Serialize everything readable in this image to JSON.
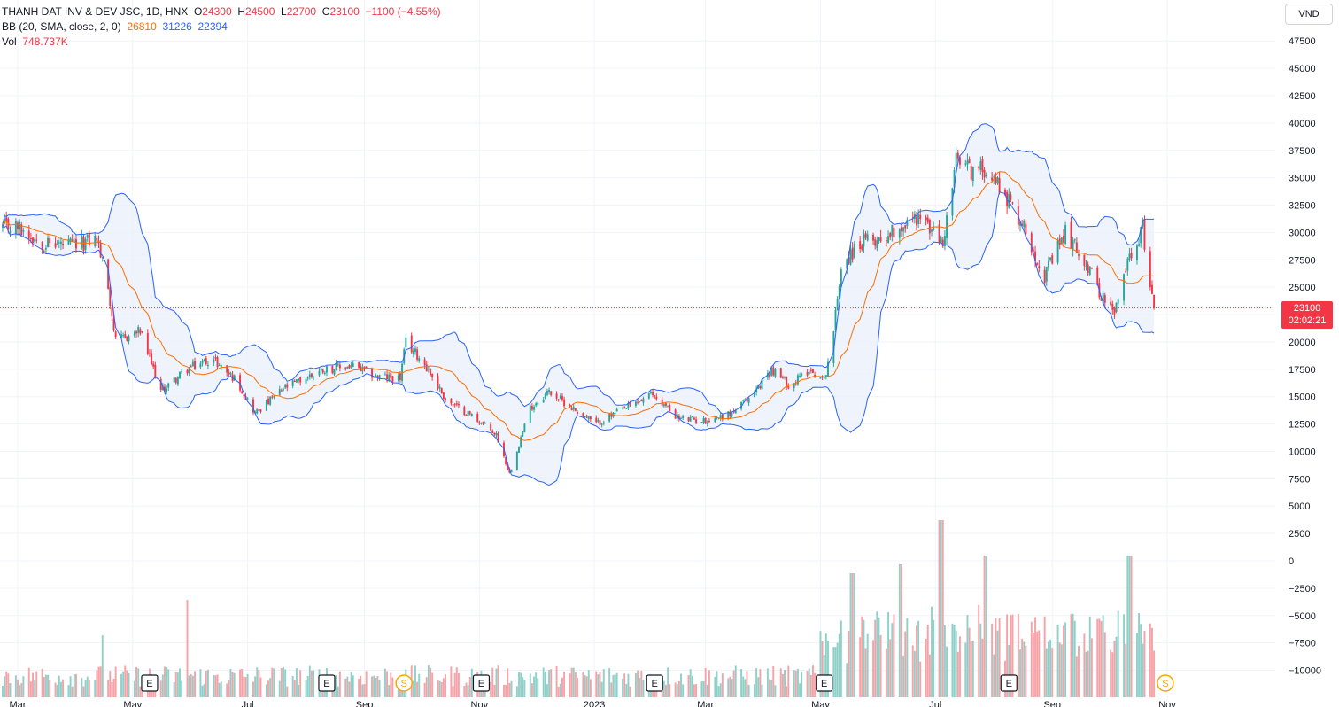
{
  "legend": {
    "symbol": "THANH DAT INV & DEV JSC, 1D, HNX",
    "o_label": "O",
    "o_val": "24300",
    "h_label": "H",
    "h_val": "24500",
    "l_label": "L",
    "l_val": "22700",
    "c_label": "C",
    "c_val": "23100",
    "change": "−1100 (−4.55%)",
    "bb_label": "BB (20, SMA, close, 2, 0)",
    "bb_basis": "26810",
    "bb_upper": "31226",
    "bb_lower": "22394",
    "vol_label": "Vol",
    "vol_val": "748.737K"
  },
  "unit_button": "VND",
  "last_price": {
    "value": "23100",
    "countdown": "02:02:21"
  },
  "colors": {
    "up": "#26a69a",
    "down": "#f23645",
    "basis": "#ff6d00",
    "band": "#2962ff",
    "band_fill": "#e8f0fb",
    "vol_up": "#8fd1c9",
    "vol_down": "#f5a3a8"
  },
  "event_markers": [
    {
      "label": "E",
      "date": "2022-05-10"
    },
    {
      "label": "E",
      "date": "2022-08-12"
    },
    {
      "label": "S",
      "date": "2022-09-22"
    },
    {
      "label": "E",
      "date": "2022-11-02"
    },
    {
      "label": "E",
      "date": "2023-02-02"
    },
    {
      "label": "E",
      "date": "2023-05-03"
    },
    {
      "label": "E",
      "date": "2023-08-09"
    },
    {
      "label": "S",
      "date": "2023-10-31"
    }
  ],
  "chart_data": {
    "type": "candlestick",
    "title": "THANH DAT INV & DEV JSC, 1D, HNX",
    "x_ticks": [
      "Mar",
      "May",
      "Jul",
      "Sep",
      "Nov",
      "2023",
      "Mar",
      "May",
      "Jul",
      "Sep",
      "Nov"
    ],
    "x_tick_dates": [
      "2022-03-01",
      "2022-05-01",
      "2022-07-01",
      "2022-09-01",
      "2022-11-01",
      "2023-01-01",
      "2023-03-01",
      "2023-05-01",
      "2023-07-01",
      "2023-09-01",
      "2023-11-01"
    ],
    "y_ticks": [
      "47500",
      "45000",
      "42500",
      "40000",
      "37500",
      "35000",
      "32500",
      "30000",
      "27500",
      "25000",
      "22500",
      "20000",
      "17500",
      "15000",
      "12500",
      "10000",
      "7500",
      "5000",
      "2500",
      "0",
      "−2500",
      "−5000",
      "−7500",
      "−10000"
    ],
    "ylim": [
      -11500,
      49000
    ],
    "price_keypoints": [
      [
        "2022-03-01",
        30500
      ],
      [
        "2022-03-15",
        29000
      ],
      [
        "2022-04-01",
        28800
      ],
      [
        "2022-04-12",
        29500
      ],
      [
        "2022-04-18",
        25000
      ],
      [
        "2022-04-22",
        20000
      ],
      [
        "2022-05-05",
        21000
      ],
      [
        "2022-05-16",
        15500
      ],
      [
        "2022-05-30",
        17500
      ],
      [
        "2022-06-12",
        18500
      ],
      [
        "2022-06-25",
        16500
      ],
      [
        "2022-07-05",
        13500
      ],
      [
        "2022-07-20",
        15700
      ],
      [
        "2022-08-10",
        17500
      ],
      [
        "2022-08-25",
        17800
      ],
      [
        "2022-09-08",
        16800
      ],
      [
        "2022-09-20",
        16700
      ],
      [
        "2022-09-23",
        20000
      ],
      [
        "2022-10-03",
        18000
      ],
      [
        "2022-10-15",
        14500
      ],
      [
        "2022-10-28",
        13300
      ],
      [
        "2022-11-10",
        11500
      ],
      [
        "2022-11-17",
        8000
      ],
      [
        "2022-11-28",
        14000
      ],
      [
        "2022-12-08",
        15500
      ],
      [
        "2022-12-20",
        14000
      ],
      [
        "2023-01-02",
        12500
      ],
      [
        "2023-01-18",
        14000
      ],
      [
        "2023-02-01",
        15200
      ],
      [
        "2023-02-15",
        13000
      ],
      [
        "2023-03-01",
        12800
      ],
      [
        "2023-03-15",
        13500
      ],
      [
        "2023-03-25",
        15000
      ],
      [
        "2023-04-05",
        17500
      ],
      [
        "2023-04-15",
        16000
      ],
      [
        "2023-04-25",
        17500
      ],
      [
        "2023-05-03",
        16500
      ],
      [
        "2023-05-08",
        21000
      ],
      [
        "2023-05-12",
        27000
      ],
      [
        "2023-05-22",
        29000
      ],
      [
        "2023-06-02",
        29500
      ],
      [
        "2023-06-12",
        30500
      ],
      [
        "2023-06-22",
        31500
      ],
      [
        "2023-07-05",
        29000
      ],
      [
        "2023-07-12",
        36500
      ],
      [
        "2023-07-22",
        35500
      ],
      [
        "2023-07-28",
        36000
      ],
      [
        "2023-08-07",
        33500
      ],
      [
        "2023-08-17",
        30500
      ],
      [
        "2023-08-28",
        26000
      ],
      [
        "2023-09-08",
        30000
      ],
      [
        "2023-09-18",
        27500
      ],
      [
        "2023-09-28",
        24000
      ],
      [
        "2023-10-04",
        22500
      ],
      [
        "2023-10-12",
        28000
      ],
      [
        "2023-10-19",
        30300
      ],
      [
        "2023-10-24",
        24300
      ],
      [
        "2023-10-25",
        23100
      ]
    ],
    "bollinger": {
      "period": 20,
      "std": 2,
      "basis": 26810,
      "upper": 31226,
      "lower": 22394
    },
    "volume": {
      "last": "748.737K",
      "spikes": [
        [
          "2022-05-29",
          0.55
        ],
        [
          "2022-04-16",
          0.35
        ],
        [
          "2023-05-18",
          0.7
        ],
        [
          "2023-06-12",
          0.75
        ],
        [
          "2023-07-04",
          1.0
        ],
        [
          "2023-07-28",
          0.8
        ],
        [
          "2023-10-12",
          0.8
        ]
      ]
    },
    "last_close": 23100,
    "grid": true
  }
}
